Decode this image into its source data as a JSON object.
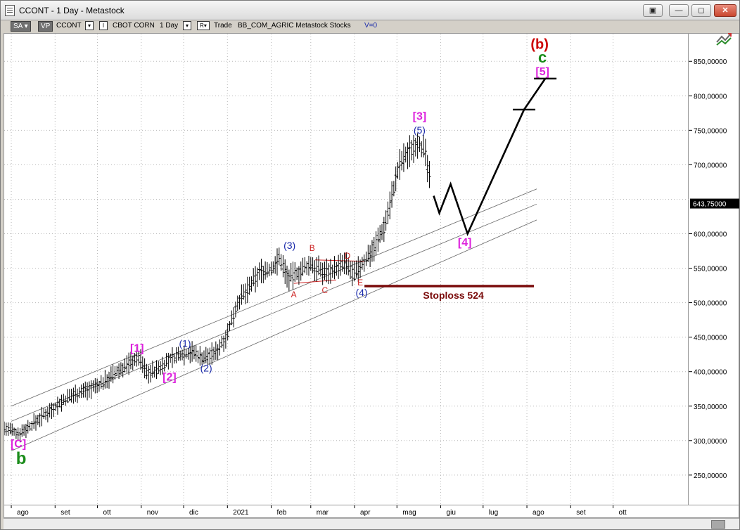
{
  "window": {
    "title": "CCONT - 1 Day - Metastock",
    "buttons": [
      "▣",
      "—",
      "◻",
      "✕"
    ]
  },
  "toolbar": {
    "sa_label": "SA",
    "vp_label": "VP",
    "symbol": "CCONT",
    "indicator_glyph": "I",
    "description": "CBOT CORN",
    "period": "1 Day",
    "r_label": "R",
    "trade_label": "Trade",
    "source_info": "BB_COM_AGRIC  Metastock  Stocks",
    "volume_info": "V=0"
  },
  "chart_data": {
    "type": "line",
    "y_ticks": [
      "850,00000",
      "800,00000",
      "750,00000",
      "700,00000",
      "600,00000",
      "550,00000",
      "500,00000",
      "450,00000",
      "400,00000",
      "350,00000",
      "300,00000",
      "250,00000"
    ],
    "y_tick_values": [
      850,
      800,
      750,
      700,
      600,
      550,
      500,
      450,
      400,
      350,
      300,
      250
    ],
    "last_price_label": "643,75000",
    "last_price": 643.75,
    "x_ticks": [
      "ago",
      "set",
      "ott",
      "nov",
      "dic",
      "2021",
      "feb",
      "mar",
      "apr",
      "mag",
      "giu",
      "lug",
      "ago",
      "set",
      "ott"
    ],
    "x_tick_days": [
      0,
      31,
      61,
      92,
      122,
      153,
      184,
      212,
      243,
      273,
      304,
      334,
      365,
      396,
      426
    ],
    "x_range_days": [
      -5,
      480
    ],
    "ylim": [
      205,
      890
    ],
    "price_path": [
      [
        -5,
        318
      ],
      [
        5,
        310
      ],
      [
        14,
        322
      ],
      [
        25,
        340
      ],
      [
        35,
        355
      ],
      [
        45,
        368
      ],
      [
        55,
        375
      ],
      [
        62,
        380
      ],
      [
        72,
        395
      ],
      [
        82,
        410
      ],
      [
        90,
        422
      ],
      [
        96,
        398
      ],
      [
        103,
        402
      ],
      [
        112,
        418
      ],
      [
        120,
        425
      ],
      [
        128,
        428
      ],
      [
        136,
        420
      ],
      [
        145,
        428
      ],
      [
        153,
        455
      ],
      [
        160,
        500
      ],
      [
        168,
        520
      ],
      [
        176,
        545
      ],
      [
        184,
        548
      ],
      [
        190,
        565
      ],
      [
        196,
        535
      ],
      [
        204,
        545
      ],
      [
        212,
        555
      ],
      [
        220,
        545
      ],
      [
        228,
        548
      ],
      [
        236,
        556
      ],
      [
        243,
        540
      ],
      [
        250,
        560
      ],
      [
        258,
        585
      ],
      [
        264,
        610
      ],
      [
        270,
        660
      ],
      [
        275,
        700
      ],
      [
        282,
        720
      ],
      [
        288,
        735
      ],
      [
        293,
        715
      ],
      [
        297,
        670
      ]
    ],
    "projection_path": [
      [
        299,
        655
      ],
      [
        303,
        630
      ],
      [
        311,
        672
      ],
      [
        323,
        600
      ],
      [
        363,
        780
      ],
      [
        378,
        825
      ]
    ],
    "channel_lines": [
      {
        "x": [
          0,
          372
        ],
        "y": [
          350,
          665
        ]
      },
      {
        "x": [
          0,
          372
        ],
        "y": [
          328,
          643
        ]
      },
      {
        "x": [
          0,
          372
        ],
        "y": [
          285,
          620
        ]
      }
    ],
    "triangle_lines": [
      {
        "x": [
          215,
          250
        ],
        "y": [
          562,
          560
        ]
      },
      {
        "x": [
          200,
          230
        ],
        "y": [
          528,
          533
        ]
      }
    ],
    "stoploss": {
      "label": "Stoploss 524",
      "value": 524,
      "x": [
        250,
        370
      ]
    },
    "target_ticks": [
      {
        "x": 378,
        "y": 825
      },
      {
        "x": 363,
        "y": 780
      }
    ],
    "annotations": [
      {
        "text": "(b)",
        "x": 374,
        "y": 868,
        "color": "#cc0000",
        "size": 20
      },
      {
        "text": "c",
        "x": 376,
        "y": 848,
        "color": "#1a8c1a",
        "size": 22
      },
      {
        "text": "[5]",
        "x": 376,
        "y": 830,
        "color": "#dd22dd",
        "size": 16
      },
      {
        "text": "[3]",
        "x": 289,
        "y": 765,
        "color": "#dd22dd",
        "size": 16
      },
      {
        "text": "(5)",
        "x": 289,
        "y": 745,
        "color": "#1a2aaa",
        "size": 14
      },
      {
        "text": "[4]",
        "x": 321,
        "y": 582,
        "color": "#dd22dd",
        "size": 16
      },
      {
        "text": "(3)",
        "x": 197,
        "y": 578,
        "color": "#1a2aaa",
        "size": 14
      },
      {
        "text": "(4)",
        "x": 248,
        "y": 510,
        "color": "#1a2aaa",
        "size": 14
      },
      {
        "text": "(1)",
        "x": 123,
        "y": 436,
        "color": "#1a2aaa",
        "size": 14
      },
      {
        "text": "(2)",
        "x": 138,
        "y": 400,
        "color": "#1a2aaa",
        "size": 14
      },
      {
        "text": "[1]",
        "x": 89,
        "y": 429,
        "color": "#dd22dd",
        "size": 16
      },
      {
        "text": "[2]",
        "x": 112,
        "y": 387,
        "color": "#dd22dd",
        "size": 16
      },
      {
        "text": "[C]",
        "x": 5,
        "y": 290,
        "color": "#dd22dd",
        "size": 16
      },
      {
        "text": "b",
        "x": 7,
        "y": 266,
        "color": "#1a8c1a",
        "size": 24
      },
      {
        "text": "A",
        "x": 200,
        "y": 508,
        "color": "#cc2222",
        "size": 12
      },
      {
        "text": "B",
        "x": 213,
        "y": 575,
        "color": "#cc2222",
        "size": 12
      },
      {
        "text": "C",
        "x": 222,
        "y": 514,
        "color": "#cc2222",
        "size": 12
      },
      {
        "text": "D",
        "x": 238,
        "y": 564,
        "color": "#cc2222",
        "size": 12
      },
      {
        "text": "E",
        "x": 247,
        "y": 525,
        "color": "#cc2222",
        "size": 12
      }
    ]
  }
}
